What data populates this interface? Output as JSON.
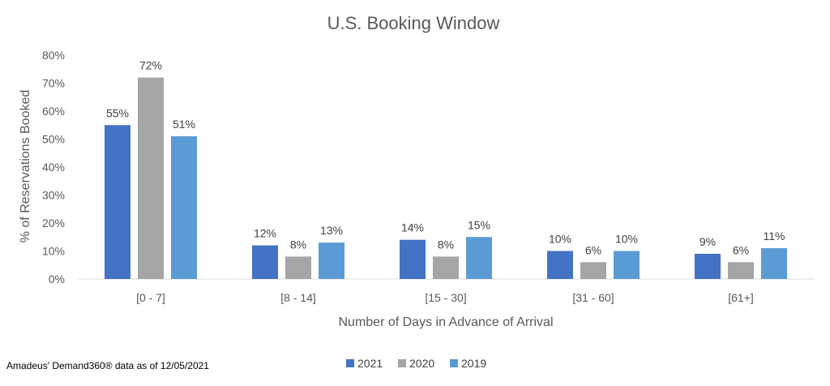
{
  "chart_data": {
    "type": "bar",
    "title": "U.S. Booking Window",
    "xlabel": "Number of Days in Advance of Arrival",
    "ylabel": "% of Reservations Booked",
    "categories": [
      "[0 - 7]",
      "[8 - 14]",
      "[15 - 30]",
      "[31 - 60]",
      "[61+]"
    ],
    "series": [
      {
        "name": "2021",
        "color": "#4472C4",
        "values": [
          55,
          12,
          14,
          10,
          9
        ]
      },
      {
        "name": "2020",
        "color": "#A5A5A5",
        "values": [
          72,
          8,
          8,
          6,
          6
        ]
      },
      {
        "name": "2019",
        "color": "#5B9BD5",
        "values": [
          51,
          13,
          15,
          10,
          11
        ]
      }
    ],
    "data_labels": [
      [
        "55%",
        "12%",
        "14%",
        "10%",
        "9%"
      ],
      [
        "72%",
        "8%",
        "8%",
        "6%",
        "6%"
      ],
      [
        "51%",
        "13%",
        "15%",
        "10%",
        "11%"
      ]
    ],
    "ylim": [
      0,
      80
    ],
    "yticks": [
      "0%",
      "10%",
      "20%",
      "30%",
      "40%",
      "50%",
      "60%",
      "70%",
      "80%"
    ],
    "legend_position": "bottom",
    "grid": false
  },
  "source_note": "Amadeus' Demand360® data as of 12/05/2021"
}
